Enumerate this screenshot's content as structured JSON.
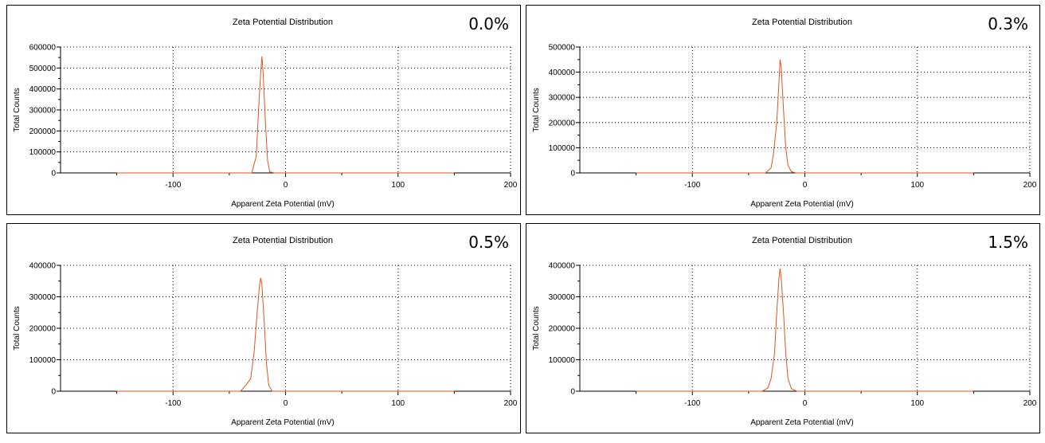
{
  "chart_data": [
    {
      "type": "line",
      "title": "Zeta Potential Distribution",
      "panel_label": "0.0%",
      "xlabel": "Apparent Zeta Potential (mV)",
      "ylabel": "Total Counts",
      "xlim": [
        -200,
        200
      ],
      "ylim": [
        0,
        600000
      ],
      "xticks": [
        -100,
        0,
        100,
        200
      ],
      "yticks": [
        0,
        100000,
        200000,
        300000,
        400000,
        500000,
        600000
      ],
      "grid": true,
      "color": "#e2541c",
      "x": [
        -150,
        -50,
        -30,
        -26,
        -24,
        -22,
        -21,
        -20,
        -18,
        -16,
        -14,
        -10,
        150
      ],
      "y": [
        0,
        0,
        0,
        80000,
        300000,
        480000,
        555000,
        480000,
        250000,
        60000,
        5000,
        0,
        0
      ]
    },
    {
      "type": "line",
      "title": "Zeta Potential Distribution",
      "panel_label": "0.3%",
      "xlabel": "Apparent Zeta Potential (mV)",
      "ylabel": "Total Counts",
      "xlim": [
        -200,
        200
      ],
      "ylim": [
        0,
        500000
      ],
      "xticks": [
        -100,
        0,
        100,
        200
      ],
      "yticks": [
        0,
        100000,
        200000,
        300000,
        400000,
        500000
      ],
      "grid": true,
      "color": "#e2541c",
      "x": [
        -150,
        -50,
        -35,
        -30,
        -28,
        -25,
        -23,
        -22,
        -21,
        -19,
        -17,
        -15,
        -12,
        -8,
        150
      ],
      "y": [
        0,
        0,
        0,
        20000,
        70000,
        200000,
        360000,
        450000,
        420000,
        250000,
        100000,
        30000,
        5000,
        0,
        0
      ]
    },
    {
      "type": "line",
      "title": "Zeta Potential Distribution",
      "panel_label": "0.5%",
      "xlabel": "Apparent Zeta Potential (mV)",
      "ylabel": "Total Counts",
      "xlim": [
        -200,
        200
      ],
      "ylim": [
        0,
        400000
      ],
      "xticks": [
        -100,
        0,
        100,
        200
      ],
      "yticks": [
        0,
        100000,
        200000,
        300000,
        400000
      ],
      "grid": true,
      "color": "#e2541c",
      "x": [
        -150,
        -50,
        -40,
        -35,
        -31,
        -28,
        -25,
        -23,
        -22,
        -21,
        -19,
        -17,
        -15,
        -12,
        150
      ],
      "y": [
        0,
        0,
        0,
        20000,
        40000,
        120000,
        260000,
        340000,
        360000,
        340000,
        220000,
        90000,
        20000,
        0,
        0
      ]
    },
    {
      "type": "line",
      "title": "Zeta Potential Distribution",
      "panel_label": "1.5%",
      "xlabel": "Apparent Zeta Potential (mV)",
      "ylabel": "Total Counts",
      "xlim": [
        -200,
        200
      ],
      "ylim": [
        0,
        400000
      ],
      "xticks": [
        -100,
        0,
        100,
        200
      ],
      "yticks": [
        0,
        100000,
        200000,
        300000,
        400000
      ],
      "grid": true,
      "color": "#e2541c",
      "x": [
        -150,
        -50,
        -38,
        -33,
        -30,
        -27,
        -25,
        -23,
        -22,
        -21,
        -19,
        -17,
        -15,
        -12,
        -7,
        150
      ],
      "y": [
        0,
        0,
        0,
        10000,
        40000,
        120000,
        250000,
        360000,
        390000,
        360000,
        250000,
        120000,
        40000,
        8000,
        0,
        0
      ]
    }
  ]
}
